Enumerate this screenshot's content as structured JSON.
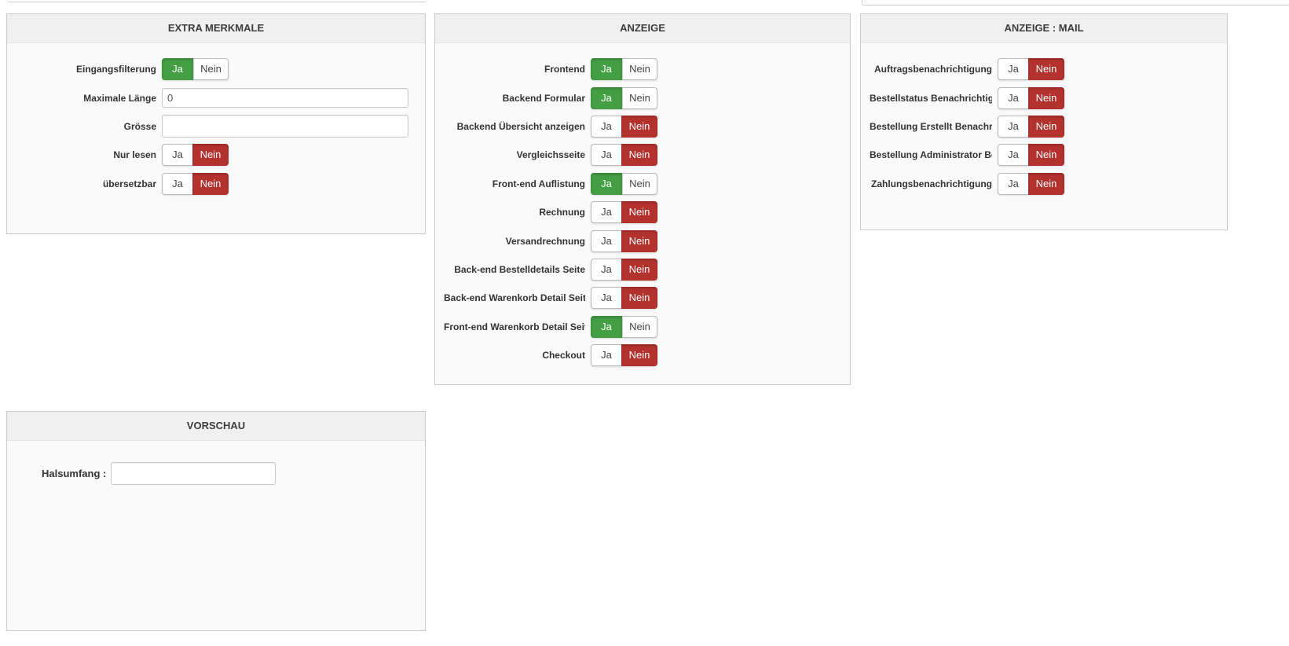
{
  "colors": {
    "yes_active": "#449e44",
    "no_active": "#b4322d",
    "panel_header_bg": "#f0f0f0",
    "panel_body_bg": "#fafafa",
    "panel_border": "#cbcbcb"
  },
  "toggle": {
    "yes_label": "Ja",
    "no_label": "Nein"
  },
  "panels": {
    "extra": {
      "title": "EXTRA MERKMALE",
      "rows": [
        {
          "label": "Eingangsfilterung",
          "type": "toggle",
          "value": "Ja"
        },
        {
          "label": "Maximale Länge",
          "type": "input",
          "value": "0"
        },
        {
          "label": "Grösse",
          "type": "input",
          "value": ""
        },
        {
          "label": "Nur lesen",
          "type": "toggle",
          "value": "Nein"
        },
        {
          "label": "übersetzbar",
          "type": "toggle",
          "value": "Nein"
        }
      ]
    },
    "anzeige": {
      "title": "ANZEIGE",
      "rows": [
        {
          "label": "Frontend",
          "type": "toggle",
          "value": "Ja"
        },
        {
          "label": "Backend Formular",
          "type": "toggle",
          "value": "Ja"
        },
        {
          "label": "Backend Übersicht anzeigen",
          "type": "toggle",
          "value": "Nein"
        },
        {
          "label": "Vergleichsseite",
          "type": "toggle",
          "value": "Nein"
        },
        {
          "label": "Front-end Auflistung",
          "type": "toggle",
          "value": "Ja"
        },
        {
          "label": "Rechnung",
          "type": "toggle",
          "value": "Nein"
        },
        {
          "label": "Versandrechnung",
          "type": "toggle",
          "value": "Nein"
        },
        {
          "label": "Back-end Bestelldetails Seite",
          "type": "toggle",
          "value": "Nein"
        },
        {
          "label": "Back-end Warenkorb Detail Seite",
          "type": "toggle",
          "value": "Nein"
        },
        {
          "label": "Front-end Warenkorb Detail Seite",
          "type": "toggle",
          "value": "Ja"
        },
        {
          "label": "Checkout",
          "type": "toggle",
          "value": "Nein"
        }
      ]
    },
    "mail": {
      "title": "ANZEIGE : MAIL",
      "rows": [
        {
          "label": "Auftragsbenachrichtigung",
          "type": "toggle",
          "value": "Nein"
        },
        {
          "label": "Bestellstatus Benachrichtigung",
          "type": "toggle",
          "value": "Nein"
        },
        {
          "label": "Bestellung Erstellt Benachrichtigung",
          "type": "toggle",
          "value": "Nein"
        },
        {
          "label": "Bestellung Administrator Benachrichtigung",
          "type": "toggle",
          "value": "Nein"
        },
        {
          "label": "Zahlungsbenachrichtigung",
          "type": "toggle",
          "value": "Nein"
        }
      ]
    },
    "vorschau": {
      "title": "VORSCHAU",
      "field_label": "Halsumfang :",
      "field_value": ""
    }
  }
}
